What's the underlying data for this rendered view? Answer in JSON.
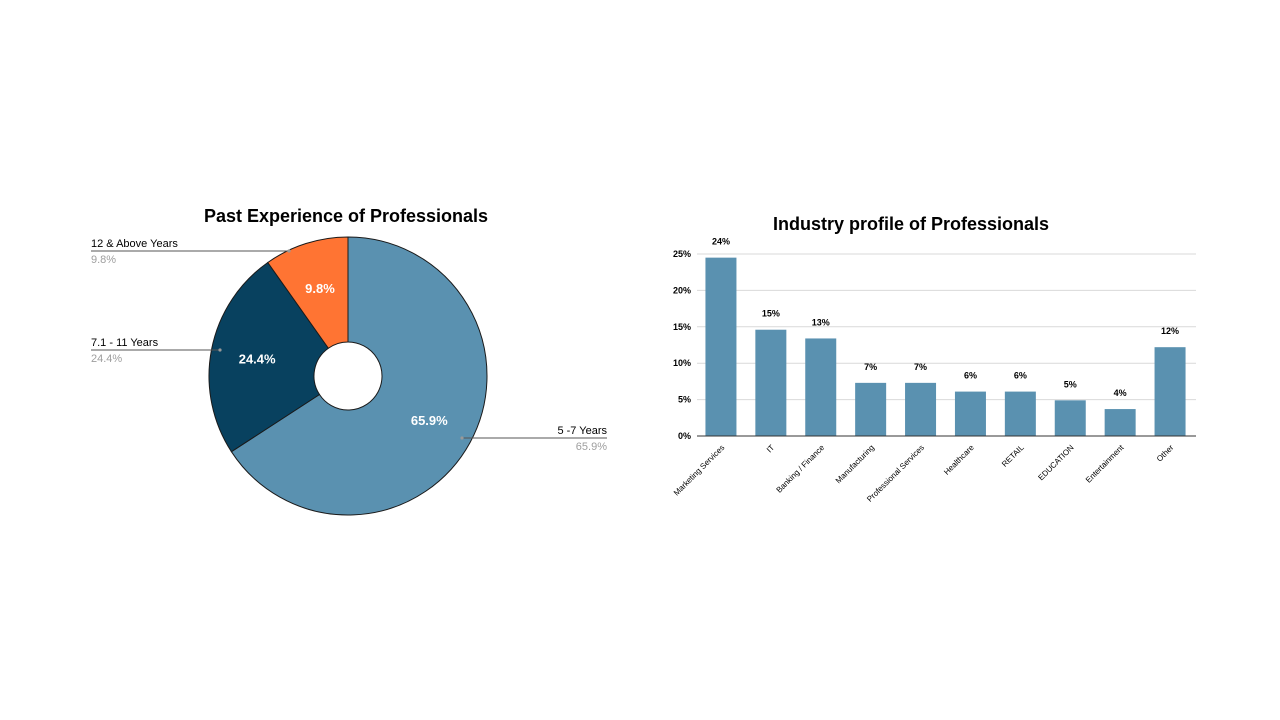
{
  "colors": {
    "pie": [
      "#5a91b0",
      "#08415f",
      "#ff7433"
    ],
    "bar": "#5a91b0",
    "grid": "#d9d9d9",
    "axis": "#333333"
  },
  "chart_data": [
    {
      "type": "pie",
      "donut": true,
      "title": "Past Experience of Professionals",
      "slices": [
        {
          "label": "5 -7 Years",
          "value": 65.9,
          "display": "65.9%"
        },
        {
          "label": "7.1 - 11 Years",
          "value": 24.4,
          "display": "24.4%"
        },
        {
          "label": "12 & Above Years",
          "value": 9.8,
          "display": "9.8%"
        }
      ],
      "legend": "callout-labels"
    },
    {
      "type": "bar",
      "title": "Industry profile of Professionals",
      "categories": [
        "Marketing Services",
        "IT",
        "Banking / Finance",
        "Manufacturing",
        "Professional Services",
        "Healthcare",
        "RETAIL",
        "EDUCATION",
        "Entertainment",
        "Other"
      ],
      "values": [
        24.5,
        14.6,
        13.4,
        7.3,
        7.3,
        6.1,
        6.1,
        4.9,
        3.7,
        12.2
      ],
      "data_labels": [
        "24%",
        "15%",
        "13%",
        "7%",
        "7%",
        "6%",
        "6%",
        "5%",
        "4%",
        "12%"
      ],
      "ylim": [
        0,
        25
      ],
      "yticks": [
        0,
        5,
        10,
        15,
        20,
        25
      ],
      "ytick_labels": [
        "0%",
        "5%",
        "10%",
        "15%",
        "20%",
        "25%"
      ],
      "grid": true,
      "xlabel": "",
      "ylabel": ""
    }
  ]
}
